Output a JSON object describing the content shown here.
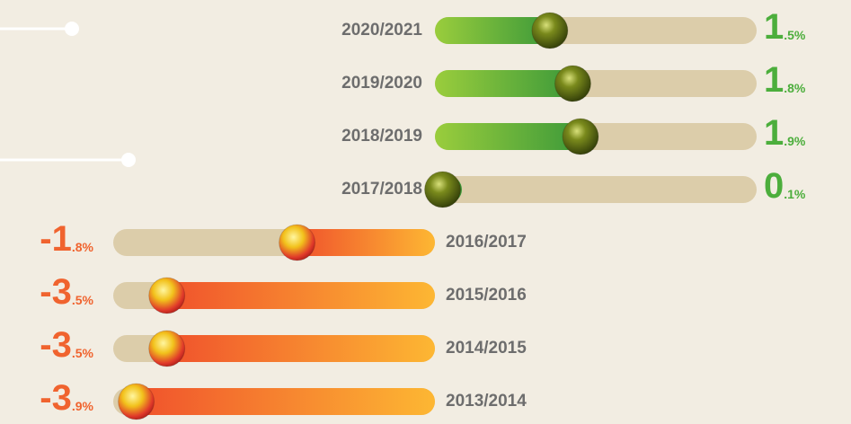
{
  "chart_data": {
    "type": "diverging-bar",
    "categories": [
      "2020/2021",
      "2019/2020",
      "2018/2019",
      "2017/2018",
      "2016/2017",
      "2015/2016",
      "2014/2015",
      "2013/2014"
    ],
    "values": [
      1.5,
      1.8,
      1.9,
      0.1,
      -1.8,
      -3.5,
      -3.5,
      -3.9
    ],
    "value_labels": [
      "1.5%",
      "1.8%",
      "1.9%",
      "0.1%",
      "-1.8%",
      "-3.5%",
      "-3.5%",
      "-3.9%"
    ],
    "xlim": [
      -4.2,
      4.2
    ],
    "positive_color": "#3d9a3a",
    "negative_color": "#f0522c",
    "track_color": "#dccdaa"
  }
}
